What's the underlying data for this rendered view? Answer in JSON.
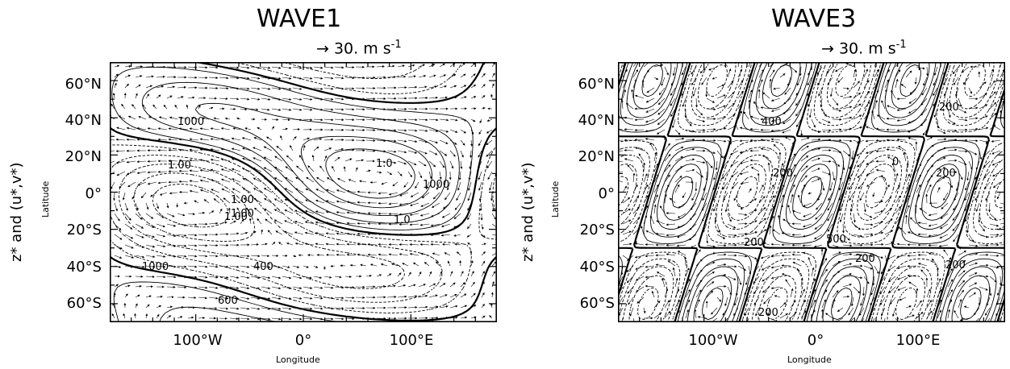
{
  "chart_data": [
    {
      "type": "contour",
      "title": "WAVE1",
      "reference_vector": {
        "arrow": "→",
        "value": "30. m s",
        "exp": "-1"
      },
      "ylabel": "z* and (u*,v*)",
      "ylabel_small": "Latitude",
      "xlabel": "Longitude",
      "xticks": [
        "100°W",
        "0°",
        "100°E"
      ],
      "xtick_values": [
        -100,
        0,
        100
      ],
      "yticks": [
        "60°N",
        "40°N",
        "20°N",
        "0°",
        "20°S",
        "40°S",
        "60°S"
      ],
      "ytick_values": [
        60,
        40,
        20,
        0,
        -20,
        -40,
        -60
      ],
      "xlim": [
        -180,
        180
      ],
      "ylim": [
        -70,
        70
      ],
      "contour_labels": [
        "1000",
        "1.00",
        "1.00",
        "1.0",
        "1000",
        "1.0",
        "1.00",
        "1.00",
        "1000",
        "600",
        "400"
      ]
    },
    {
      "type": "contour",
      "title": "WAVE3",
      "reference_vector": {
        "arrow": "→",
        "value": "30. m s",
        "exp": "-1"
      },
      "ylabel": "z* and (u*,v*)",
      "ylabel_small": "Latitude",
      "xlabel": "Longitude",
      "xticks": [
        "100°W",
        "0°",
        "100°E"
      ],
      "xtick_values": [
        -100,
        0,
        100
      ],
      "yticks": [
        "60°N",
        "40°N",
        "20°N",
        "0°",
        "20°S",
        "40°S",
        "60°S"
      ],
      "ytick_values": [
        60,
        40,
        20,
        0,
        -20,
        -40,
        -60
      ],
      "xlim": [
        -180,
        180
      ],
      "ylim": [
        -70,
        70
      ],
      "contour_labels": [
        "200",
        "400",
        "200",
        "200",
        "0",
        "200",
        "200",
        "500",
        "200",
        "200"
      ]
    }
  ]
}
